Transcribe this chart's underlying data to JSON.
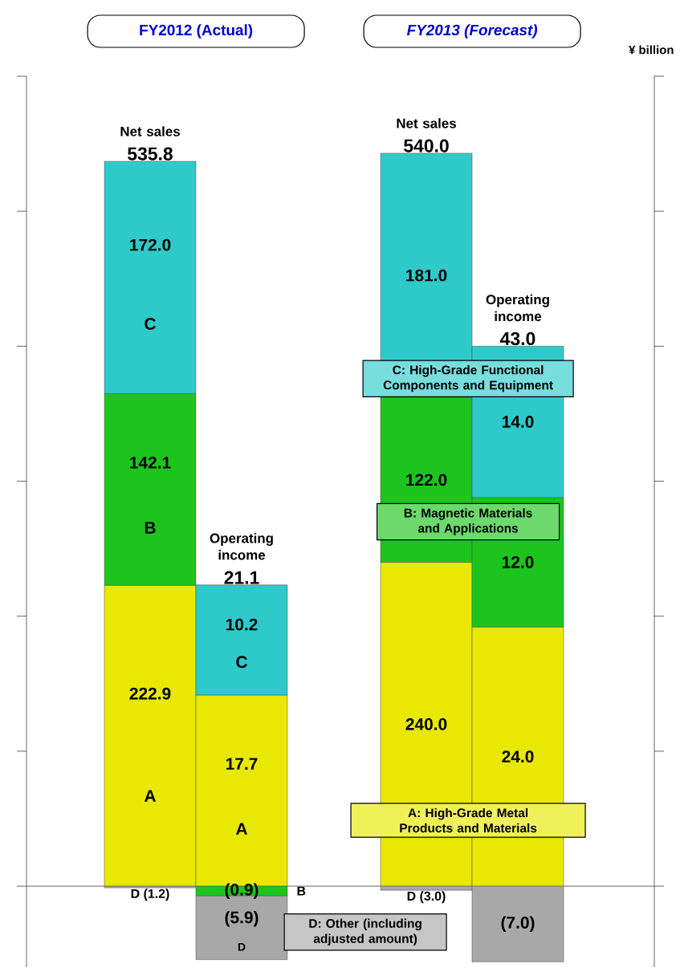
{
  "chart_data": [
    {
      "type": "bar",
      "stacked": true,
      "categories": [
        "Net sales",
        "Net sales"
      ],
      "series": [
        {
          "color": "#e8e800",
          "values": [
            222.9,
            240.0
          ],
          "value_labels": [
            "222.9",
            "240.0"
          ]
        },
        {
          "color": "#1ec41e",
          "values": [
            142.1,
            122.0
          ],
          "value_labels": [
            "142.1",
            "122.0"
          ]
        },
        {
          "color": "#2ecaca",
          "values": [
            172.0,
            181.0
          ],
          "value_labels": [
            "172.0",
            "181.0"
          ]
        },
        {
          "color": "#a8a8a8",
          "values": [
            -1.2,
            -3.0
          ],
          "value_labels": [
            "D (1.2)",
            "D (3.0)"
          ]
        }
      ],
      "totals": [
        "535.8",
        "540.0"
      ],
      "ylim": [
        -60,
        600
      ],
      "yticks": [
        {
          "value": 0,
          "label": null
        },
        {
          "value": 100,
          "label": null
        },
        {
          "value": 200,
          "label": null
        },
        {
          "value": 300,
          "label": null
        },
        {
          "value": 400,
          "label": null
        },
        {
          "value": 500,
          "label": null
        },
        {
          "value": 600,
          "label": null
        }
      ],
      "annotations": [
        "FY2012 (Actual)",
        "FY2013 (Forecast)",
        "C",
        "B",
        "A"
      ]
    },
    {
      "type": "bar",
      "stacked": true,
      "ylabel": "¥ billion",
      "categories": [
        "Operating income",
        "Operating income"
      ],
      "series": [
        {
          "color": "#e8e800",
          "values": [
            17.7,
            24.0
          ],
          "value_labels": [
            "17.7",
            "24.0"
          ]
        },
        {
          "color": "#1ec41e",
          "values": [
            -0.9,
            12.0
          ],
          "value_labels": [
            "(0.9)",
            "12.0"
          ]
        },
        {
          "color": "#2ecaca",
          "values": [
            10.2,
            14.0
          ],
          "value_labels": [
            "10.2",
            "14.0"
          ]
        },
        {
          "color": "#a8a8a8",
          "values": [
            -5.9,
            -7.0
          ],
          "value_labels": [
            "(5.9)",
            "(7.0)"
          ]
        }
      ],
      "totals": [
        "21.1",
        "43.0"
      ],
      "ylim": [
        -7.5,
        75
      ],
      "yticks": [
        {
          "value": 0,
          "label": null
        },
        {
          "value": 12.5,
          "label": null
        },
        {
          "value": 25,
          "label": null
        },
        {
          "value": 37.5,
          "label": null
        },
        {
          "value": 50,
          "label": null
        },
        {
          "value": 62.5,
          "label": null
        },
        {
          "value": 75,
          "label": null
        }
      ],
      "annotations": [
        "C",
        "A",
        "B",
        "D",
        "C: High-Grade Functional Components and Equipment",
        "B: Magnetic Materials and Applications",
        "A: High-Grade Metal Products and Materials",
        "D: Other (including adjusted amount)"
      ]
    }
  ]
}
